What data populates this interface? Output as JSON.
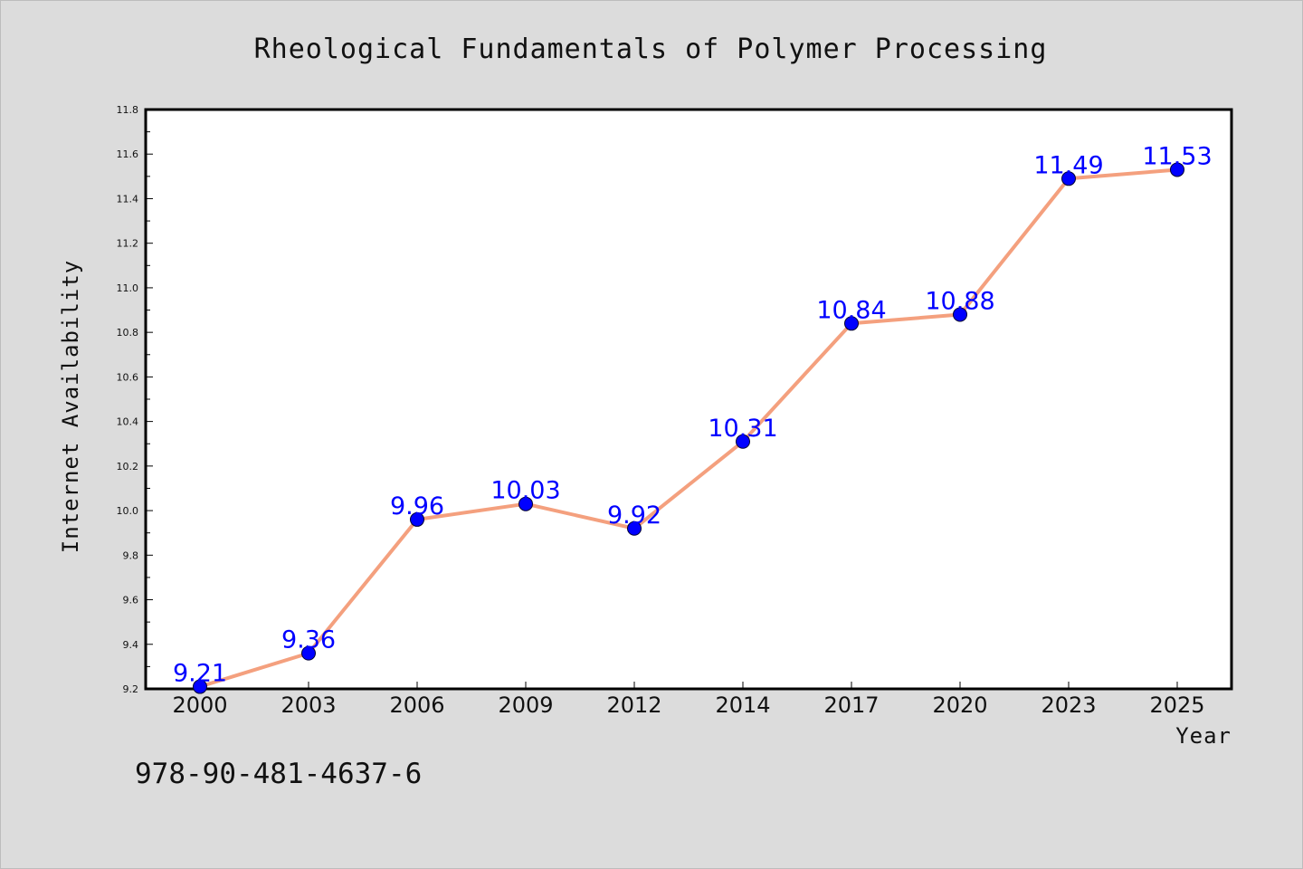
{
  "chart_data": {
    "type": "line",
    "title": "Rheological Fundamentals of Polymer Processing",
    "xlabel": "Year",
    "ylabel": "Internet Availability",
    "categories": [
      "2000",
      "2003",
      "2006",
      "2009",
      "2012",
      "2014",
      "2017",
      "2020",
      "2023",
      "2025"
    ],
    "series": [
      {
        "values": [
          9.21,
          9.36,
          9.96,
          10.03,
          9.92,
          10.31,
          10.84,
          10.88,
          11.49,
          11.53
        ],
        "line_color": "#f4a07e",
        "marker_color": "#0000ff"
      }
    ],
    "data_labels": [
      "9.21",
      "9.36",
      "9.96",
      "10.03",
      "9.92",
      "10.31",
      "10.84",
      "10.88",
      "11.49",
      "11.53"
    ],
    "ylim": [
      9.2,
      11.8
    ],
    "yticks": [
      "9.2",
      "9.4",
      "9.6",
      "9.8",
      "10.0",
      "10.2",
      "10.4",
      "10.6",
      "10.8",
      "11.0",
      "11.2",
      "11.4",
      "11.6",
      "11.8"
    ],
    "grid": false,
    "legend": "none"
  },
  "footer": {
    "isbn": "978-90-481-4637-6"
  },
  "colors": {
    "background": "#dcdcdc",
    "plot_area": "#ffffff",
    "line": "#f4a07e",
    "marker": "#0000ff",
    "data_label": "#0000ff"
  }
}
